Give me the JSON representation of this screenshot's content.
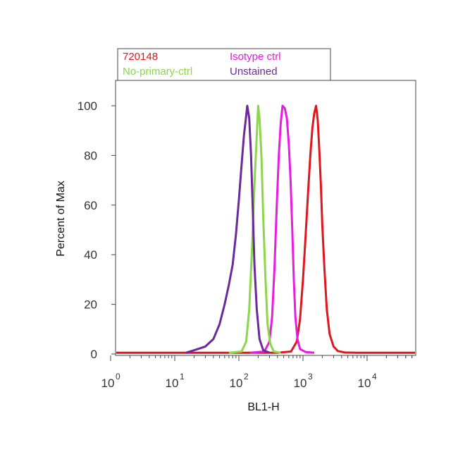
{
  "chart_data": {
    "type": "line",
    "title": "",
    "xlabel": "BL1-H",
    "ylabel": "Percent of Max",
    "x_scale": "log",
    "xlim": [
      1,
      60000
    ],
    "ylim": [
      0,
      110
    ],
    "grid": false,
    "legend_position": "top-left",
    "y_ticks": [
      0,
      20,
      40,
      60,
      80,
      100
    ],
    "y_tick_labels": [
      "0",
      "20",
      "40",
      "60",
      "80",
      "100"
    ],
    "x_ticks": [
      1,
      10,
      100,
      1000,
      10000
    ],
    "x_tick_base": "10",
    "x_tick_exponents": [
      "0",
      "1",
      "2",
      "3",
      "4"
    ],
    "series": [
      {
        "name": "720148",
        "color": "#e0161e",
        "points": [
          [
            1,
            0.5
          ],
          [
            400,
            0.5
          ],
          [
            650,
            1
          ],
          [
            800,
            5
          ],
          [
            900,
            14
          ],
          [
            1000,
            30
          ],
          [
            1100,
            48
          ],
          [
            1200,
            65
          ],
          [
            1300,
            80
          ],
          [
            1400,
            91
          ],
          [
            1500,
            97
          ],
          [
            1600,
            100
          ],
          [
            1700,
            94
          ],
          [
            1800,
            82
          ],
          [
            1900,
            68
          ],
          [
            2000,
            52
          ],
          [
            2150,
            35
          ],
          [
            2350,
            18
          ],
          [
            2600,
            8
          ],
          [
            3000,
            3
          ],
          [
            3500,
            1.2
          ],
          [
            4500,
            0.6
          ],
          [
            7000,
            0.5
          ],
          [
            15000,
            0.5
          ],
          [
            60000,
            0.5
          ]
        ]
      },
      {
        "name": "Isotype ctrl",
        "color": "#e81ce0",
        "points": [
          [
            150,
            0.5
          ],
          [
            250,
            1
          ],
          [
            300,
            5
          ],
          [
            330,
            15
          ],
          [
            360,
            35
          ],
          [
            390,
            60
          ],
          [
            420,
            80
          ],
          [
            450,
            93
          ],
          [
            480,
            100
          ],
          [
            520,
            99
          ],
          [
            560,
            95
          ],
          [
            600,
            85
          ],
          [
            640,
            70
          ],
          [
            680,
            50
          ],
          [
            720,
            30
          ],
          [
            760,
            15
          ],
          [
            820,
            6
          ],
          [
            900,
            2
          ],
          [
            1100,
            0.8
          ],
          [
            1500,
            0.5
          ]
        ]
      },
      {
        "name": "No-primary-ctrl",
        "color": "#8dd64a",
        "points": [
          [
            70,
            0.5
          ],
          [
            110,
            1
          ],
          [
            130,
            5
          ],
          [
            145,
            18
          ],
          [
            160,
            42
          ],
          [
            175,
            68
          ],
          [
            190,
            88
          ],
          [
            200,
            100
          ],
          [
            210,
            95
          ],
          [
            225,
            80
          ],
          [
            240,
            55
          ],
          [
            260,
            30
          ],
          [
            280,
            12
          ],
          [
            310,
            4
          ],
          [
            350,
            1
          ],
          [
            450,
            0.5
          ]
        ]
      },
      {
        "name": "Unstained",
        "color": "#6a2a9c",
        "points": [
          [
            15,
            0.5
          ],
          [
            20,
            1.5
          ],
          [
            30,
            3
          ],
          [
            40,
            6
          ],
          [
            50,
            12
          ],
          [
            60,
            20
          ],
          [
            70,
            28
          ],
          [
            80,
            36
          ],
          [
            90,
            48
          ],
          [
            100,
            62
          ],
          [
            110,
            76
          ],
          [
            120,
            88
          ],
          [
            130,
            96
          ],
          [
            135,
            100
          ],
          [
            145,
            95
          ],
          [
            155,
            80
          ],
          [
            165,
            58
          ],
          [
            175,
            36
          ],
          [
            190,
            18
          ],
          [
            210,
            6
          ],
          [
            240,
            1.5
          ],
          [
            300,
            0.5
          ]
        ]
      }
    ]
  }
}
